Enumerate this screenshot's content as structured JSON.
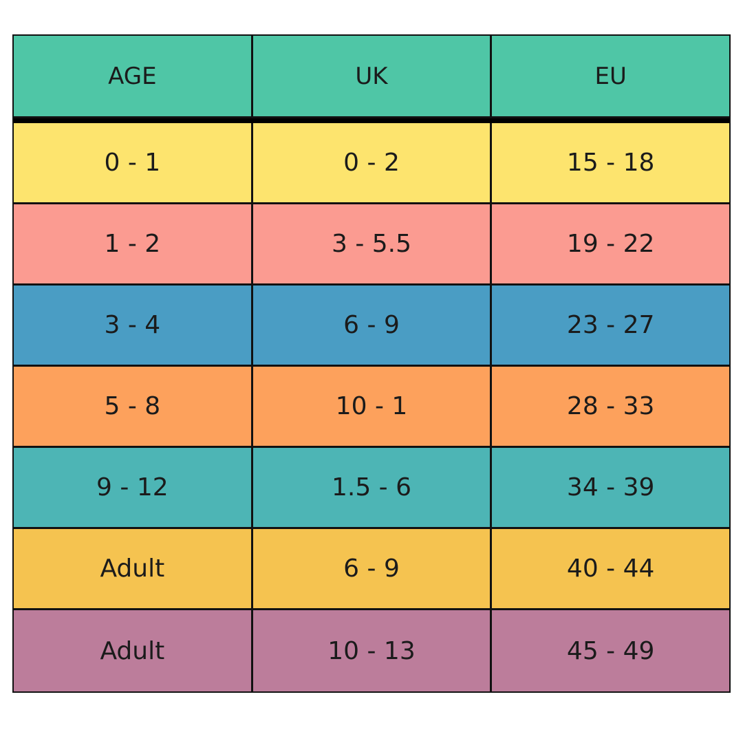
{
  "header": {
    "cells": [
      "AGE",
      "UK",
      "EU"
    ]
  },
  "table": {
    "rows": [
      [
        "0 - 1",
        "0 - 2",
        "15 - 18"
      ],
      [
        "1 - 2",
        "3 - 5.5",
        "19 - 22"
      ],
      [
        "3 - 4",
        "6 - 9",
        "23 - 27"
      ],
      [
        "5 - 8",
        "10 - 1",
        "28 - 33"
      ],
      [
        "9 - 12",
        "1.5 - 6",
        "34 - 39"
      ],
      [
        "Adult",
        "6 - 9",
        "40 - 44"
      ],
      [
        "Adult",
        "10 - 13",
        "45 - 49"
      ]
    ]
  }
}
